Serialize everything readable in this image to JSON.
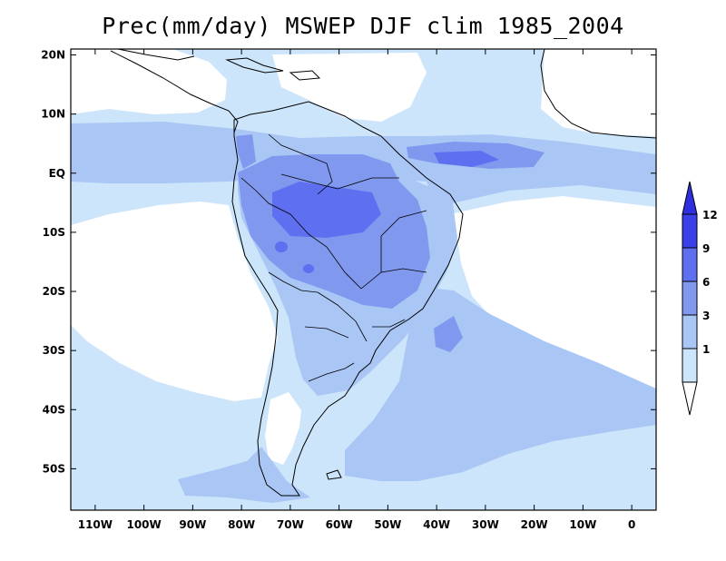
{
  "title": "Prec(mm/day) MSWEP DJF clim 1985_2004",
  "map": {
    "lon_range": [
      -115,
      5
    ],
    "lat_range": [
      -57,
      21
    ],
    "y_tick_labels": [
      {
        "lat": 20,
        "label": "20N"
      },
      {
        "lat": 10,
        "label": "10N"
      },
      {
        "lat": 0,
        "label": "EQ"
      },
      {
        "lat": -10,
        "label": "10S"
      },
      {
        "lat": -20,
        "label": "20S"
      },
      {
        "lat": -30,
        "label": "30S"
      },
      {
        "lat": -40,
        "label": "40S"
      },
      {
        "lat": -50,
        "label": "50S"
      }
    ],
    "x_tick_labels": [
      {
        "lon": -110,
        "label": "110W"
      },
      {
        "lon": -100,
        "label": "100W"
      },
      {
        "lon": -90,
        "label": "90W"
      },
      {
        "lon": -80,
        "label": "80W"
      },
      {
        "lon": -70,
        "label": "70W"
      },
      {
        "lon": -60,
        "label": "60W"
      },
      {
        "lon": -50,
        "label": "50W"
      },
      {
        "lon": -40,
        "label": "40W"
      },
      {
        "lon": -30,
        "label": "30W"
      },
      {
        "lon": -20,
        "label": "20W"
      },
      {
        "lon": -10,
        "label": "10W"
      },
      {
        "lon": 0,
        "label": "0"
      }
    ]
  },
  "colorbar": {
    "levels": [
      "1",
      "3",
      "6",
      "9",
      "12"
    ],
    "colors": [
      "#ffffff",
      "#cce5fb",
      "#a9c6f5",
      "#8099ef",
      "#5e6ff0",
      "#3a3fe8",
      "#2f2fe0"
    ]
  }
}
